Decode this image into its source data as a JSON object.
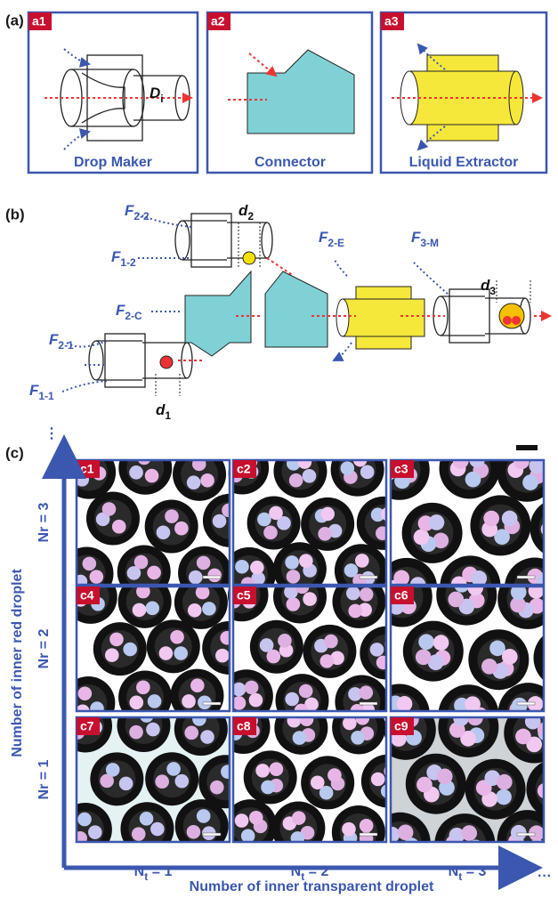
{
  "panel_a": {
    "label": "(a)",
    "boxes": [
      {
        "tag": "a1",
        "caption": "Drop Maker"
      },
      {
        "tag": "a2",
        "caption": "Connector"
      },
      {
        "tag": "a3",
        "caption": "Liquid Extractor"
      }
    ],
    "diameter": {
      "main": "D",
      "sub": "i"
    }
  },
  "panel_b": {
    "label": "(b)",
    "flows": [
      {
        "main": "F",
        "sub": "2-2"
      },
      {
        "main": "F",
        "sub": "1-2"
      },
      {
        "main": "F",
        "sub": "2-C"
      },
      {
        "main": "F",
        "sub": "2-1"
      },
      {
        "main": "F",
        "sub": "1-1"
      },
      {
        "main": "F",
        "sub": "2-E"
      },
      {
        "main": "F",
        "sub": "3-M"
      }
    ],
    "diameters": [
      {
        "main": "d",
        "sub": "2"
      },
      {
        "main": "d",
        "sub": "1"
      },
      {
        "main": "d",
        "sub": "3"
      }
    ]
  },
  "panel_c": {
    "label": "(c)",
    "images": [
      "c1",
      "c2",
      "c3",
      "c4",
      "c5",
      "c6",
      "c7",
      "c8",
      "c9"
    ],
    "rows": [
      {
        "main": "Nr",
        "rest": " = 3"
      },
      {
        "main": "Nr",
        "rest": " = 2"
      },
      {
        "main": "Nr",
        "rest": " = 1"
      }
    ],
    "cols": [
      {
        "main": "N",
        "sub": "t",
        "rest": " = 1"
      },
      {
        "main": "N",
        "sub": "t",
        "rest": " = 2"
      },
      {
        "main": "N",
        "sub": "t",
        "rest": " = 3"
      }
    ],
    "y_title": "Number of inner red droplet",
    "x_title": "Number of inner transparent droplet",
    "y_more": "⋮",
    "x_more": "···"
  }
}
